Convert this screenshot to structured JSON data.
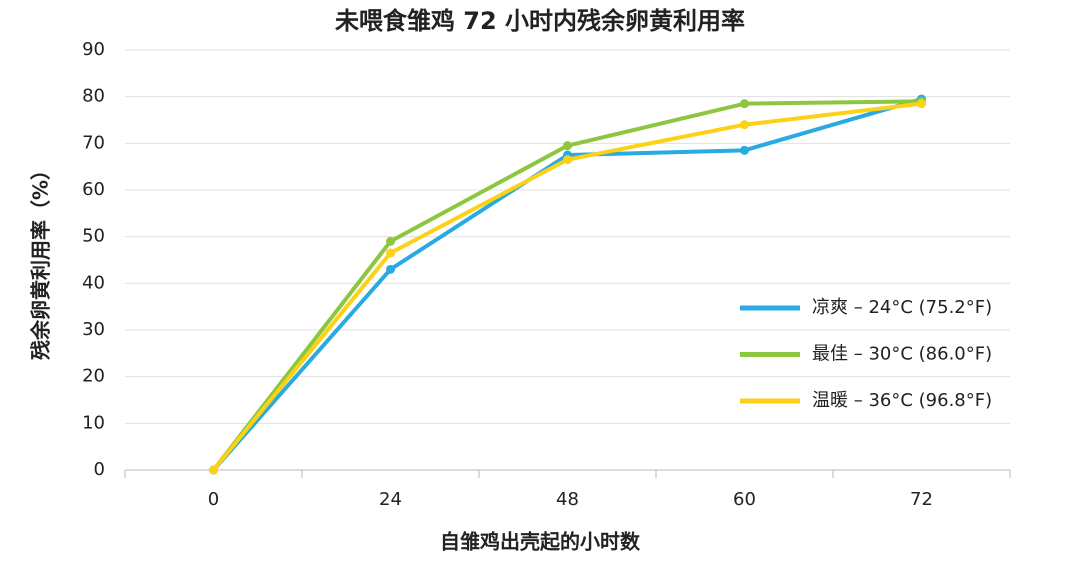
{
  "chart_data": {
    "type": "line",
    "title": "未喂食雏鸡 72 小时内残余卵黄利用率",
    "x_label": "自雏鸡出壳起的小时数",
    "y_label": "残余卵黄利用率（%）",
    "categories": [
      "0",
      "24",
      "48",
      "60",
      "72"
    ],
    "series": [
      {
        "name": "凉爽 – 24°C (75.2°F)",
        "color": "#29abe2",
        "values": [
          0,
          43,
          67.5,
          68.5,
          79.5
        ]
      },
      {
        "name": "最佳 – 30°C (86.0°F)",
        "color": "#8dc63f",
        "values": [
          0,
          49,
          69.5,
          78.5,
          79
        ]
      },
      {
        "name": "温暖 – 36°C (96.8°F)",
        "color": "#fcd116",
        "values": [
          0,
          46.5,
          66.5,
          74,
          78.5
        ]
      }
    ],
    "ylim": [
      0,
      90
    ],
    "yticks": [
      0,
      10,
      20,
      30,
      40,
      50,
      60,
      70,
      80,
      90
    ],
    "grid": true,
    "legend": "right"
  }
}
